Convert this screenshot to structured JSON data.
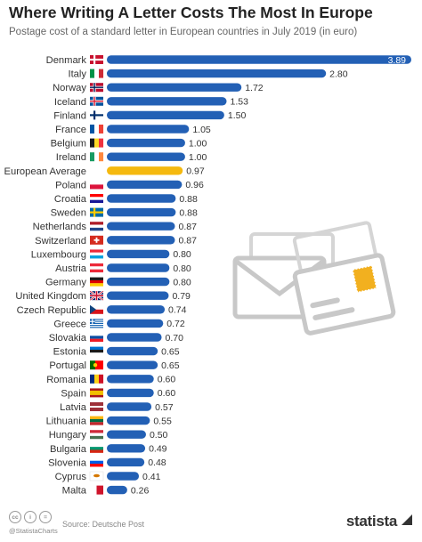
{
  "title": "Where Writing A Letter Costs The Most In Europe",
  "subtitle": "Postage cost of a standard letter in European countries in July 2019 (in euro)",
  "source": "Source: Deutsche Post",
  "handle": "@StatistaCharts",
  "brand": "statista",
  "colors": {
    "bar": "#2360b5",
    "highlight": "#f5b90f",
    "icon": "#c8c8c8",
    "stamp": "#f2b01f"
  },
  "icons": [
    "envelope-icon",
    "card-icon",
    "creative-commons-icon",
    "brand-icon"
  ],
  "cc_icons": [
    "cc",
    "i",
    "="
  ],
  "chart_data": {
    "type": "bar",
    "orientation": "horizontal",
    "title": "Where Writing A Letter Costs The Most In Europe",
    "subtitle": "Postage cost of a standard letter in European countries in July 2019 (in euro)",
    "xlim": [
      0,
      3.89
    ],
    "grid": false,
    "categories": [
      "Denmark",
      "Italy",
      "Norway",
      "Iceland",
      "Finland",
      "France",
      "Belgium",
      "Ireland",
      "European Average",
      "Poland",
      "Croatia",
      "Sweden",
      "Netherlands",
      "Switzerland",
      "Luxembourg",
      "Austria",
      "Germany",
      "United Kingdom",
      "Czech Republic",
      "Greece",
      "Slovakia",
      "Estonia",
      "Portugal",
      "Romania",
      "Spain",
      "Latvia",
      "Lithuania",
      "Hungary",
      "Bulgaria",
      "Slovenia",
      "Cyprus",
      "Malta"
    ],
    "values": [
      3.89,
      2.8,
      1.72,
      1.53,
      1.5,
      1.05,
      1.0,
      1.0,
      0.97,
      0.96,
      0.88,
      0.88,
      0.87,
      0.87,
      0.8,
      0.8,
      0.8,
      0.79,
      0.74,
      0.72,
      0.7,
      0.65,
      0.65,
      0.6,
      0.6,
      0.57,
      0.55,
      0.5,
      0.49,
      0.48,
      0.41,
      0.26
    ],
    "value_labels": [
      "3.89",
      "2.80",
      "1.72",
      "1.53",
      "1.50",
      "1.05",
      "1.00",
      "1.00",
      "0.97",
      "0.96",
      "0.88",
      "0.88",
      "0.87",
      "0.87",
      "0.80",
      "0.80",
      "0.80",
      "0.79",
      "0.74",
      "0.72",
      "0.70",
      "0.65",
      "0.65",
      "0.60",
      "0.60",
      "0.57",
      "0.55",
      "0.50",
      "0.49",
      "0.48",
      "0.41",
      "0.26"
    ],
    "highlight": "European Average"
  }
}
